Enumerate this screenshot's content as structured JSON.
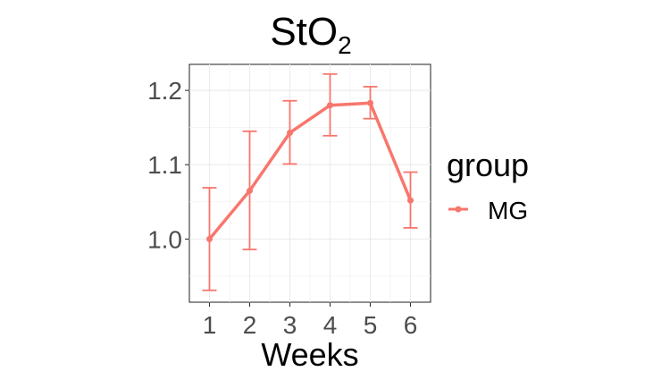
{
  "chart_data": {
    "type": "line",
    "title": "StO",
    "title_subscript": "2",
    "xlabel": "Weeks",
    "ylabel": "",
    "x": [
      1,
      2,
      3,
      4,
      5,
      6
    ],
    "x_tick_labels": [
      "1",
      "2",
      "3",
      "4",
      "5",
      "6"
    ],
    "xlim": [
      0.5,
      6.5
    ],
    "y_ticks": [
      1.0,
      1.1,
      1.2
    ],
    "y_tick_labels": [
      "1.0",
      "1.1",
      "1.2"
    ],
    "ylim": [
      0.915,
      1.235
    ],
    "grid": true,
    "legend": {
      "title": "group",
      "position": "right"
    },
    "series": [
      {
        "name": "MG",
        "color": "#F8766D",
        "values": [
          1.0,
          1.065,
          1.143,
          1.18,
          1.183,
          1.052
        ],
        "error_low": [
          0.931,
          0.986,
          1.101,
          1.139,
          1.162,
          1.015
        ],
        "error_high": [
          1.069,
          1.145,
          1.186,
          1.222,
          1.205,
          1.09
        ]
      }
    ]
  }
}
